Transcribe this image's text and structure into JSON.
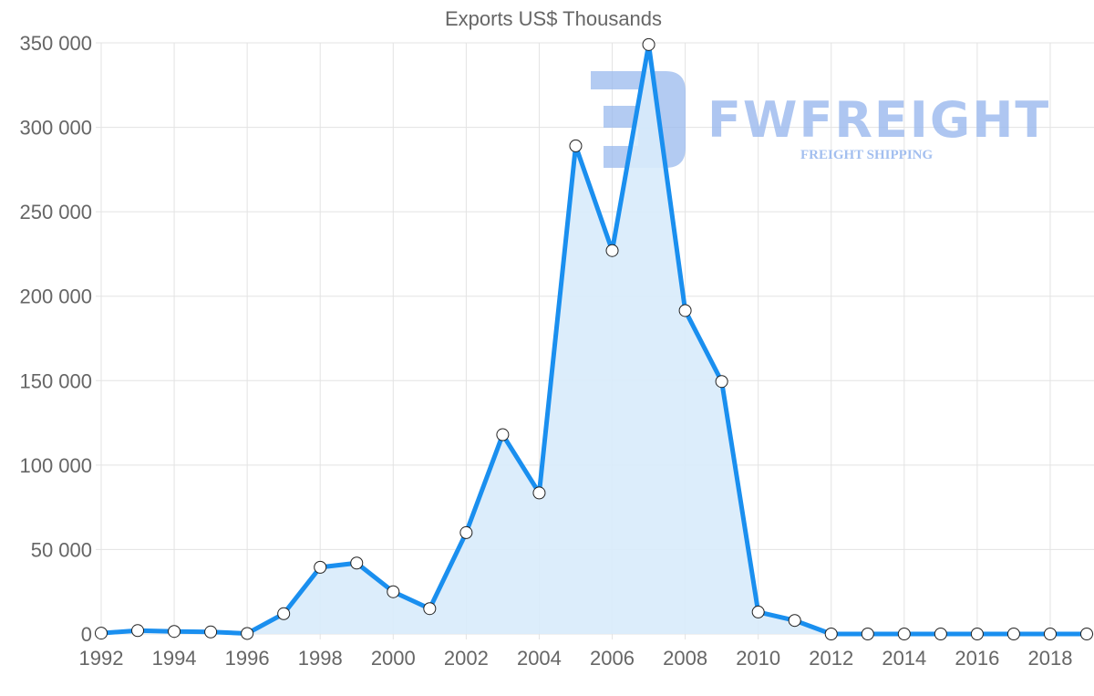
{
  "title": "Exports US$ Thousands",
  "watermark": {
    "brand": "FWFREIGHT",
    "tagline": "FREIGHT SHIPPING"
  },
  "colors": {
    "line": "#1a8fef",
    "fill": "#d8ebfb",
    "grid": "#e3e3e3",
    "text": "#666666",
    "watermark": "#9ab9ee"
  },
  "chart_data": {
    "type": "area",
    "title": "Exports US$ Thousands",
    "xlabel": "",
    "ylabel": "",
    "x": [
      1992,
      1993,
      1994,
      1995,
      1996,
      1997,
      1998,
      1999,
      2000,
      2001,
      2002,
      2003,
      2004,
      2005,
      2006,
      2007,
      2008,
      2009,
      2010,
      2011,
      2012,
      2013,
      2014,
      2015,
      2016,
      2017,
      2018,
      2019
    ],
    "series": [
      {
        "name": "Exports US$ Thousands",
        "values": [
          500,
          2000,
          1500,
          1200,
          300,
          12000,
          39500,
          42000,
          25000,
          15000,
          60000,
          118000,
          83500,
          289000,
          227000,
          349000,
          191500,
          149500,
          13000,
          8000,
          0,
          0,
          0,
          0,
          0,
          0,
          0,
          0
        ]
      }
    ],
    "y_ticks": [
      "0",
      "50 000",
      "100 000",
      "150 000",
      "200 000",
      "250 000",
      "300 000",
      "350 000"
    ],
    "y_tick_values": [
      0,
      50000,
      100000,
      150000,
      200000,
      250000,
      300000,
      350000
    ],
    "x_tick_labels": [
      "1992",
      "1994",
      "1996",
      "1998",
      "2000",
      "2002",
      "2004",
      "2006",
      "2008",
      "2010",
      "2012",
      "2014",
      "2016",
      "2018"
    ],
    "ylim": [
      0,
      350000
    ],
    "grid": true,
    "legend": "none"
  }
}
